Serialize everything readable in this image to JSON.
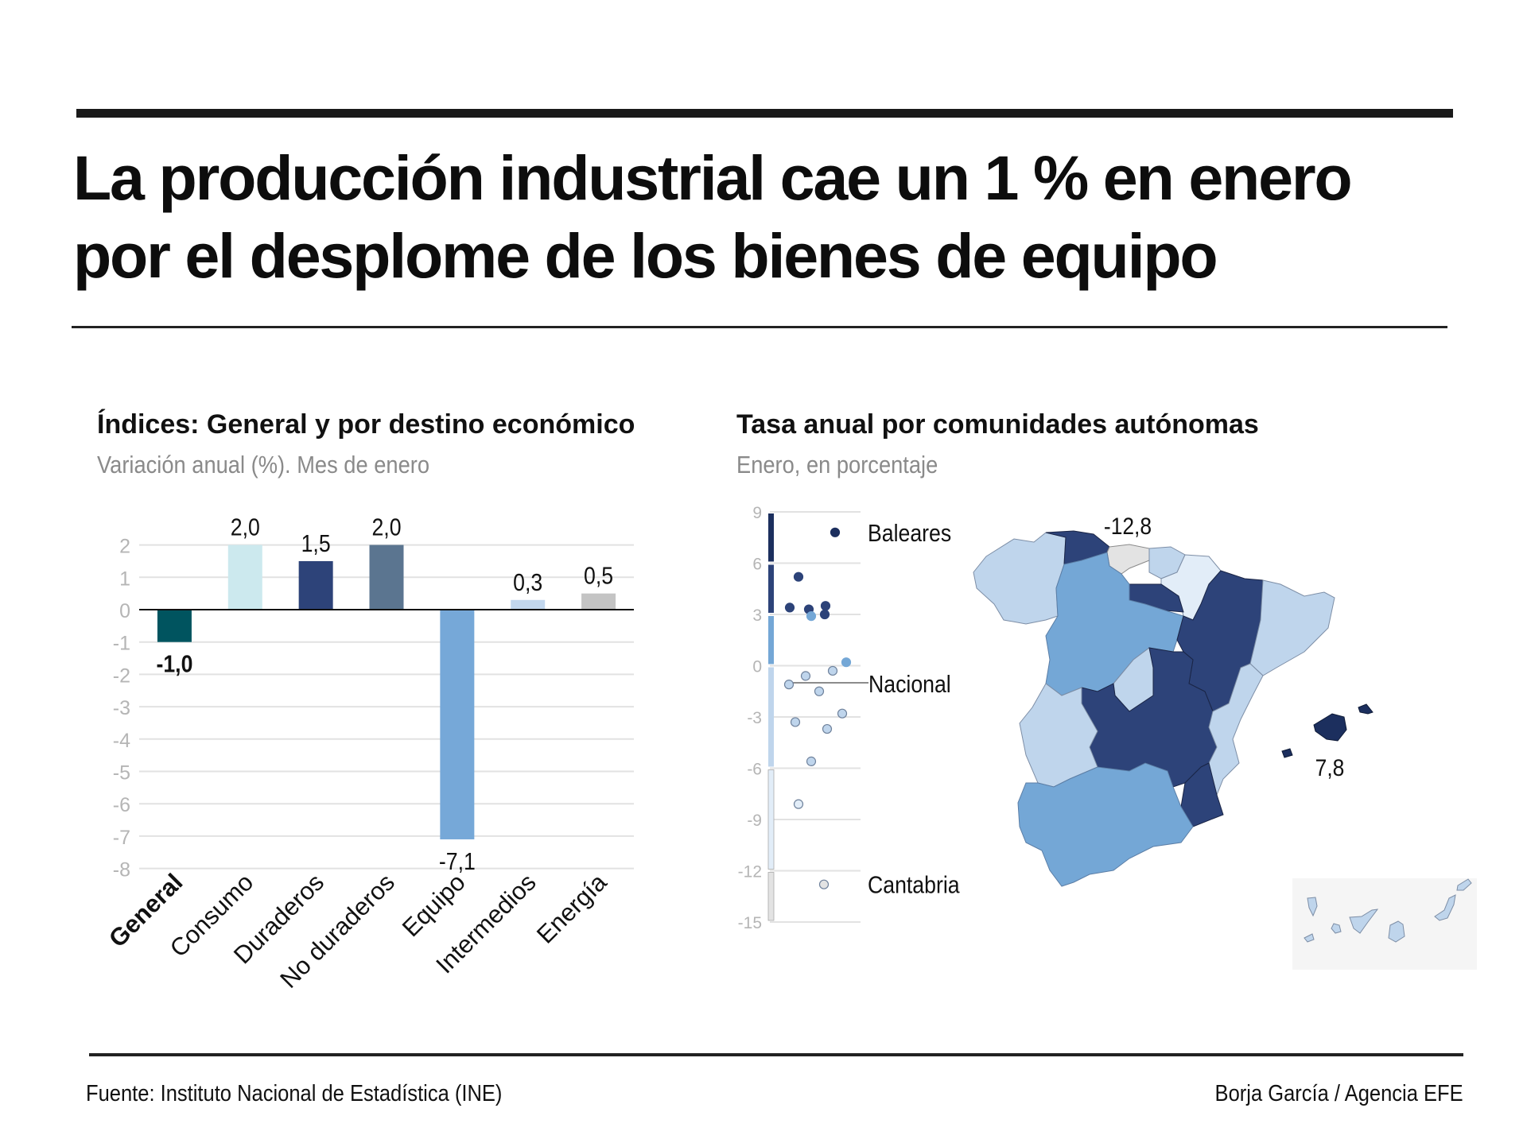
{
  "headline": {
    "line1": "La producción industrial cae un 1 % en enero",
    "line2": "por el desplome de los bienes de equipo"
  },
  "left_panel": {
    "title": "Índices: General y por destino económico",
    "subtitle": "Variación anual (%). Mes de enero"
  },
  "right_panel": {
    "title": "Tasa anual por comunidades autónomas",
    "subtitle": "Enero, en porcentaje"
  },
  "footer": {
    "source": "Fuente: Instituto Nacional de Estadística (INE)",
    "credit": "Borja García / Agencia EFE"
  },
  "colors": {
    "range_above_6": "#1c2f5e",
    "range_3_6": "#2d4379",
    "range_0_3": "#74a7d6",
    "range_m6_0": "#bfd5ec",
    "range_m12_m6": "#e2edf8",
    "range_below_m12": "#e3e3e3",
    "canary_bg": "#f5f5f5"
  },
  "chart_data": [
    {
      "type": "bar",
      "title": "Índices: General y por destino económico",
      "subtitle": "Variación anual (%). Mes de enero",
      "xlabel": "",
      "ylabel": "",
      "categories": [
        "General",
        "Consumo",
        "Duraderos",
        "No duraderos",
        "Equipo",
        "Intermedios",
        "Energía"
      ],
      "values": [
        -1.0,
        2.0,
        1.5,
        2.0,
        -7.1,
        0.3,
        0.5
      ],
      "value_labels": [
        "-1,0",
        "2,0",
        "1,5",
        "2,0",
        "-7,1",
        "0,3",
        "0,5"
      ],
      "bar_colors": [
        "#00545f",
        "#cce9ee",
        "#2d4379",
        "#5b7590",
        "#76a8d8",
        "#c2d7ee",
        "#c4c4c4"
      ],
      "highlight_category": "General",
      "ylim": [
        -8,
        2
      ],
      "yticks": [
        2,
        1,
        0,
        -1,
        -2,
        -3,
        -4,
        -5,
        -6,
        -7,
        -8
      ],
      "grid": true
    },
    {
      "type": "scatter",
      "title": "Tasa anual por comunidades autónomas",
      "subtitle": "Enero, en porcentaje",
      "ylim": [
        -15,
        9
      ],
      "yticks": [
        9,
        6,
        3,
        0,
        -3,
        -6,
        -9,
        -12,
        -15
      ],
      "grid": true,
      "color_ranges": [
        {
          "min": 6,
          "max": 9,
          "color": "#1c2f5e"
        },
        {
          "min": 3,
          "max": 6,
          "color": "#2d4379"
        },
        {
          "min": 0,
          "max": 3,
          "color": "#74a7d6"
        },
        {
          "min": -6,
          "max": 0,
          "color": "#bfd5ec"
        },
        {
          "min": -12,
          "max": -6,
          "color": "#e2edf8"
        },
        {
          "min": -15,
          "max": -12,
          "color": "#e3e3e3"
        }
      ],
      "points": [
        {
          "value": 7.8,
          "label": "Baleares"
        },
        {
          "value": 5.2
        },
        {
          "value": 3.4
        },
        {
          "value": 3.3
        },
        {
          "value": 3.5
        },
        {
          "value": 3.0
        },
        {
          "value": 2.9
        },
        {
          "value": 0.2
        },
        {
          "value": -0.3
        },
        {
          "value": -0.6
        },
        {
          "value": -1.1
        },
        {
          "value": -1.5
        },
        {
          "value": -2.8
        },
        {
          "value": -3.3
        },
        {
          "value": -3.7
        },
        {
          "value": -5.6
        },
        {
          "value": -8.1
        },
        {
          "value": -12.8,
          "label": "Cantabria"
        }
      ],
      "reference_line": {
        "value": -1.0,
        "label": "Nacional"
      },
      "map_annotations": [
        {
          "region": "Cantabria",
          "label": "-12,8"
        },
        {
          "region": "Baleares",
          "label": "7,8"
        }
      ]
    }
  ]
}
